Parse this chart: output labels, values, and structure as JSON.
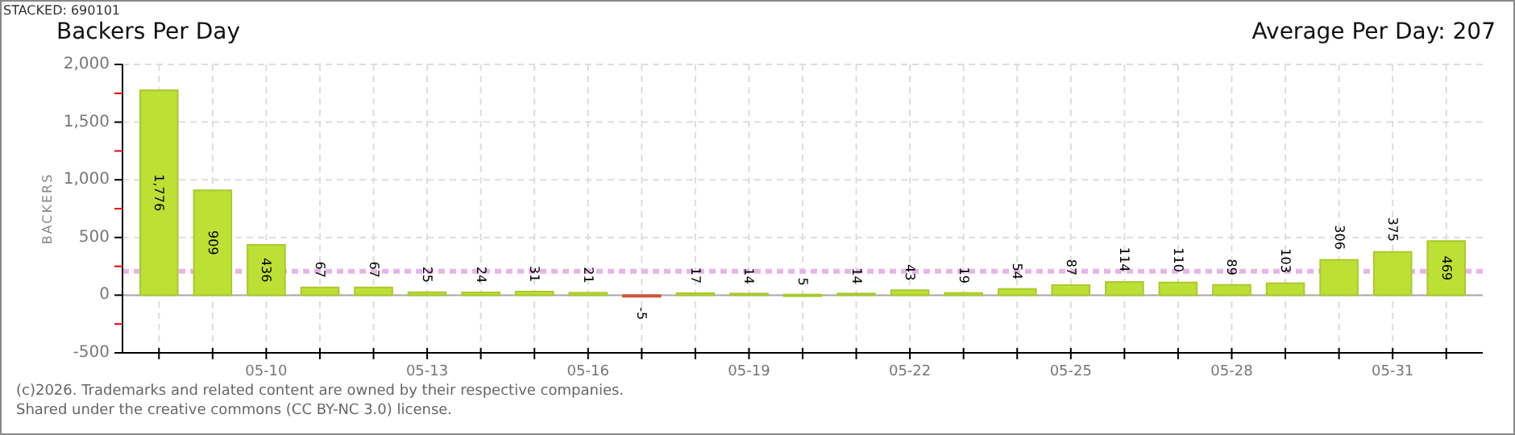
{
  "chart_data": {
    "type": "bar",
    "title": "Backers Per Day",
    "subtitle": "Average Per Day: 207",
    "ylabel": "BACKERS",
    "annotations": [
      "STACKED: 690101",
      "(c)2026. Trademarks and related content are owned by their respective companies.",
      "Shared under the creative commons (CC BY-NC 3.0) license."
    ],
    "categories": [
      null,
      null,
      "05-10",
      null,
      null,
      "05-13",
      null,
      null,
      "05-16",
      null,
      null,
      "05-19",
      null,
      null,
      "05-22",
      null,
      null,
      "05-25",
      null,
      null,
      "05-28",
      null,
      null,
      "05-31",
      null
    ],
    "values": [
      1776,
      909,
      436,
      67,
      67,
      25,
      24,
      31,
      21,
      -5,
      17,
      14,
      5,
      14,
      43,
      19,
      54,
      87,
      114,
      110,
      89,
      103,
      306,
      375,
      469
    ],
    "colors": [
      "#bde034",
      "#bde034",
      "#bde034",
      "#bde034",
      "#bde034",
      "#bde034",
      "#bde034",
      "#bde034",
      "#bde034",
      "#e8603c",
      "#bde034",
      "#bde034",
      "#bde034",
      "#bde034",
      "#bde034",
      "#bde034",
      "#bde034",
      "#bde034",
      "#bde034",
      "#bde034",
      "#bde034",
      "#bde034",
      "#bde034",
      "#bde034",
      "#bde034"
    ],
    "value_labels": [
      "1,776",
      "909",
      "436",
      "67",
      "67",
      "25",
      "24",
      "31",
      "21",
      "-5",
      "17",
      "14",
      "5",
      "14",
      "43",
      "19",
      "54",
      "87",
      "114",
      "110",
      "89",
      "103",
      "306",
      "375",
      "469"
    ],
    "ylim": [
      -500,
      2000
    ],
    "yticks": [
      -500,
      {
        "value": -250,
        "label": null
      },
      0,
      {
        "value": 250,
        "label": null
      },
      500,
      {
        "value": 750,
        "label": null
      },
      {
        "value": 1000,
        "label": "1,000"
      },
      {
        "value": 1250,
        "label": null
      },
      {
        "value": 1500,
        "label": "1,500"
      },
      {
        "value": 1750,
        "label": null
      },
      {
        "value": 2000,
        "label": "2,000"
      }
    ],
    "ref_lines": [
      {
        "axis": "y",
        "value": 207,
        "color": "#e8b4e8",
        "line_style": "dashed"
      }
    ],
    "grid": true
  }
}
